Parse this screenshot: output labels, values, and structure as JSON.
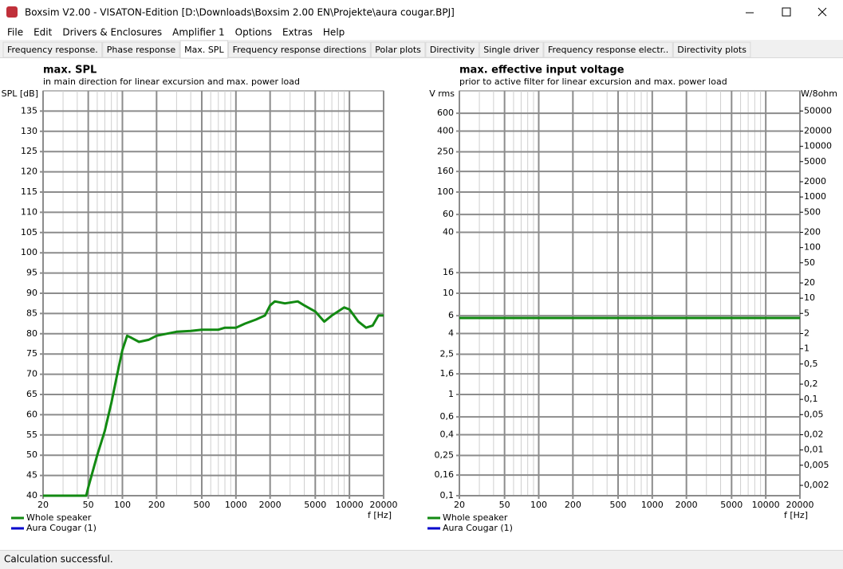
{
  "window": {
    "title": "Boxsim V2.00 - VISATON-Edition [D:\\Downloads\\Boxsim 2.00 EN\\Projekte\\aura cougar.BPJ]"
  },
  "menu": [
    "File",
    "Edit",
    "Drivers & Enclosures",
    "Amplifier 1",
    "Options",
    "Extras",
    "Help"
  ],
  "tabs": [
    "Frequency response.",
    "Phase response",
    "Max. SPL",
    "Frequency response directions",
    "Polar plots",
    "Directivity",
    "Single driver",
    "Frequency response electr..",
    "Directivity plots"
  ],
  "active_tab": 2,
  "status": "Calculation successful.",
  "chart_data": [
    {
      "type": "line",
      "title": "max. SPL",
      "subtitle": "in main direction for linear excursion and max. power load",
      "ylabel": "SPL [dB]",
      "xlabel": "f [Hz]",
      "xscale": "log",
      "yscale": "linear",
      "xlim": [
        20,
        20000
      ],
      "xticks": [
        20,
        50,
        100,
        200,
        500,
        1000,
        2000,
        5000,
        10000,
        20000
      ],
      "xminor": [
        30,
        40,
        60,
        70,
        80,
        90,
        300,
        400,
        600,
        700,
        800,
        900,
        3000,
        4000,
        6000,
        7000,
        8000,
        9000
      ],
      "ylim": [
        40,
        140
      ],
      "yticks": [
        40,
        45,
        50,
        55,
        60,
        65,
        70,
        75,
        80,
        85,
        90,
        95,
        100,
        105,
        110,
        115,
        120,
        125,
        130,
        135
      ],
      "series": [
        {
          "name": "Whole speaker",
          "color": "#128a12",
          "x": [
            20,
            48,
            50,
            60,
            70,
            80,
            90,
            100,
            110,
            120,
            140,
            170,
            200,
            300,
            400,
            500,
            700,
            800,
            1000,
            1200,
            1500,
            1800,
            2000,
            2200,
            2700,
            3500,
            4000,
            5000,
            6000,
            7000,
            9000,
            10000,
            12000,
            14000,
            16000,
            18000,
            20000
          ],
          "values": [
            40,
            40,
            42,
            50,
            56,
            63,
            70,
            76,
            79.5,
            79,
            78,
            78.5,
            79.5,
            80.5,
            80.7,
            81,
            81,
            81.5,
            81.5,
            82.5,
            83.5,
            84.5,
            87,
            88,
            87.5,
            88,
            87,
            85.5,
            83,
            84.5,
            86.5,
            86,
            83,
            81.5,
            82,
            84.5,
            84.5
          ]
        },
        {
          "name": "Aura Cougar (1)",
          "color": "#0000cc"
        }
      ]
    },
    {
      "type": "line",
      "title": "max. effective input voltage",
      "subtitle": "prior to active filter for linear excursion and max. power load",
      "ylabel": "V rms",
      "y2label": "W/8ohm",
      "xlabel": "f [Hz]",
      "xscale": "log",
      "yscale": "log",
      "xlim": [
        20,
        20000
      ],
      "xticks": [
        20,
        50,
        100,
        200,
        500,
        1000,
        2000,
        5000,
        10000,
        20000
      ],
      "xminor": [
        30,
        40,
        60,
        70,
        80,
        90,
        300,
        400,
        600,
        700,
        800,
        900,
        3000,
        4000,
        6000,
        7000,
        8000,
        9000
      ],
      "ylim": [
        0.1,
        1000
      ],
      "yticks": [
        {
          "value": 0.1,
          "label": "0,1"
        },
        {
          "value": 0.16,
          "label": "0,16"
        },
        {
          "value": 0.25,
          "label": "0,25"
        },
        {
          "value": 0.4,
          "label": "0,4"
        },
        {
          "value": 0.6,
          "label": "0,6"
        },
        1,
        {
          "value": 1.6,
          "label": "1,6"
        },
        {
          "value": 2.5,
          "label": "2,5"
        },
        4,
        6,
        10,
        16,
        40,
        60,
        100,
        160,
        250,
        400,
        600
      ],
      "y2lim": [
        0.00125,
        125000
      ],
      "y2ticks": [
        {
          "value": 0.002,
          "label": "0,002"
        },
        {
          "value": 0.005,
          "label": "0,005"
        },
        {
          "value": 0.01,
          "label": "0,01"
        },
        {
          "value": 0.02,
          "label": "0,02"
        },
        {
          "value": 0.05,
          "label": "0,05"
        },
        {
          "value": 0.1,
          "label": "0,1"
        },
        {
          "value": 0.2,
          "label": "0,2"
        },
        {
          "value": 0.5,
          "label": "0,5"
        },
        1,
        2,
        5,
        10,
        20,
        50,
        100,
        200,
        500,
        1000,
        2000,
        5000,
        10000,
        20000,
        50000
      ],
      "series": [
        {
          "name": "Whole speaker",
          "color": "#128a12",
          "x": [
            20,
            20000
          ],
          "values": [
            5.7,
            5.7
          ]
        },
        {
          "name": "Aura Cougar (1)",
          "color": "#0000cc"
        }
      ]
    }
  ]
}
